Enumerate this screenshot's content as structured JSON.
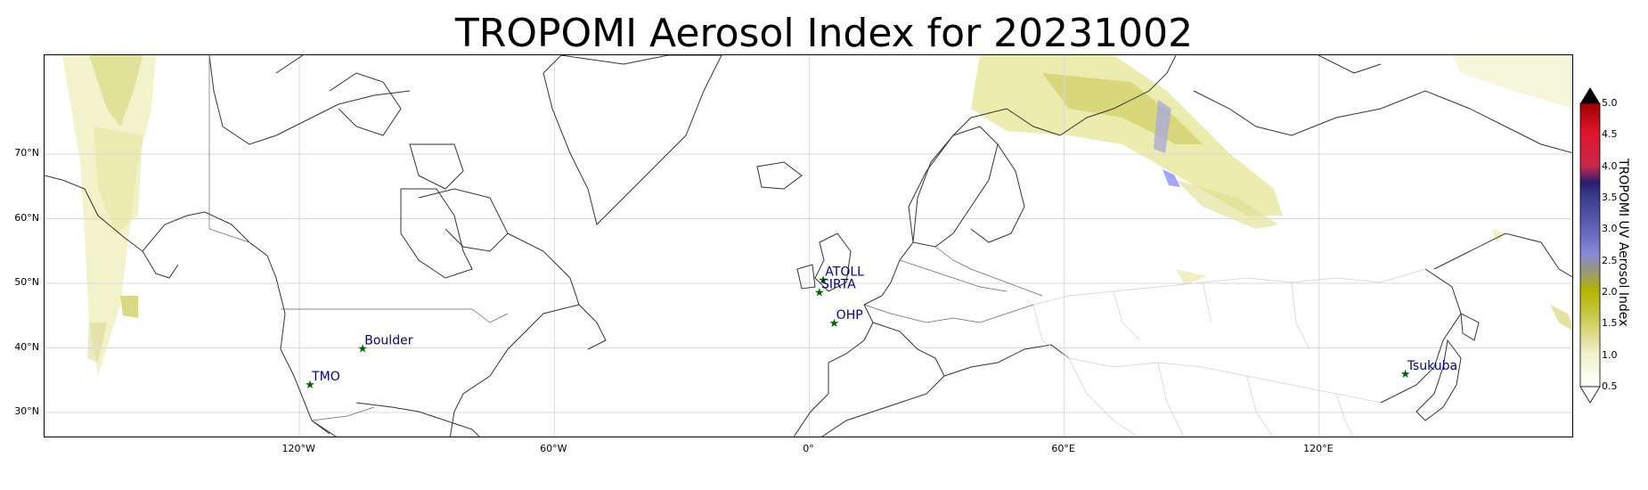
{
  "title": "TROPOMI Aerosol Index for 20231002",
  "map": {
    "projection": "PlateCarree",
    "lon_range": [
      -180,
      180
    ],
    "lat_range": [
      25,
      83
    ],
    "lat_ticks": [
      {
        "value": 70,
        "label": "70°N"
      },
      {
        "value": 60,
        "label": "60°N"
      },
      {
        "value": 50,
        "label": "50°N"
      },
      {
        "value": 40,
        "label": "40°N"
      },
      {
        "value": 30,
        "label": "30°N"
      }
    ],
    "lon_ticks": [
      {
        "value": -120,
        "label": "120°W"
      },
      {
        "value": -60,
        "label": "60°W"
      },
      {
        "value": 0,
        "label": "0°"
      },
      {
        "value": 60,
        "label": "60°E"
      },
      {
        "value": 120,
        "label": "120°E"
      }
    ],
    "gridlines": true,
    "sites": [
      {
        "name": "TMO",
        "lon": -117.7,
        "lat": 34.4
      },
      {
        "name": "Boulder",
        "lon": -105.3,
        "lat": 40.0
      },
      {
        "name": "ATOLL",
        "lon": 3.1,
        "lat": 50.6
      },
      {
        "name": "SIRTA",
        "lon": 2.2,
        "lat": 48.7
      },
      {
        "name": "OHP",
        "lon": 5.7,
        "lat": 43.9
      },
      {
        "name": "Tsukuba",
        "lon": 140.1,
        "lat": 36.1
      }
    ],
    "site_marker_color": "#006400",
    "site_label_color": "#00008b"
  },
  "colorbar": {
    "label": "TROPOMI UV Aerosol Index",
    "ticks": [
      "5.0",
      "4.5",
      "4.0",
      "3.5",
      "3.0",
      "2.5",
      "2.0",
      "1.5",
      "1.0",
      "0.5"
    ],
    "range": [
      0.5,
      5.0
    ],
    "extend": "both",
    "colors": [
      "#ffffff",
      "#f2f2cc",
      "#c8c84a",
      "#b4b400",
      "#9a9a6e",
      "#8080ff",
      "#4646a0",
      "#3c2878",
      "#e6143c",
      "#c80000",
      "#000000"
    ]
  }
}
